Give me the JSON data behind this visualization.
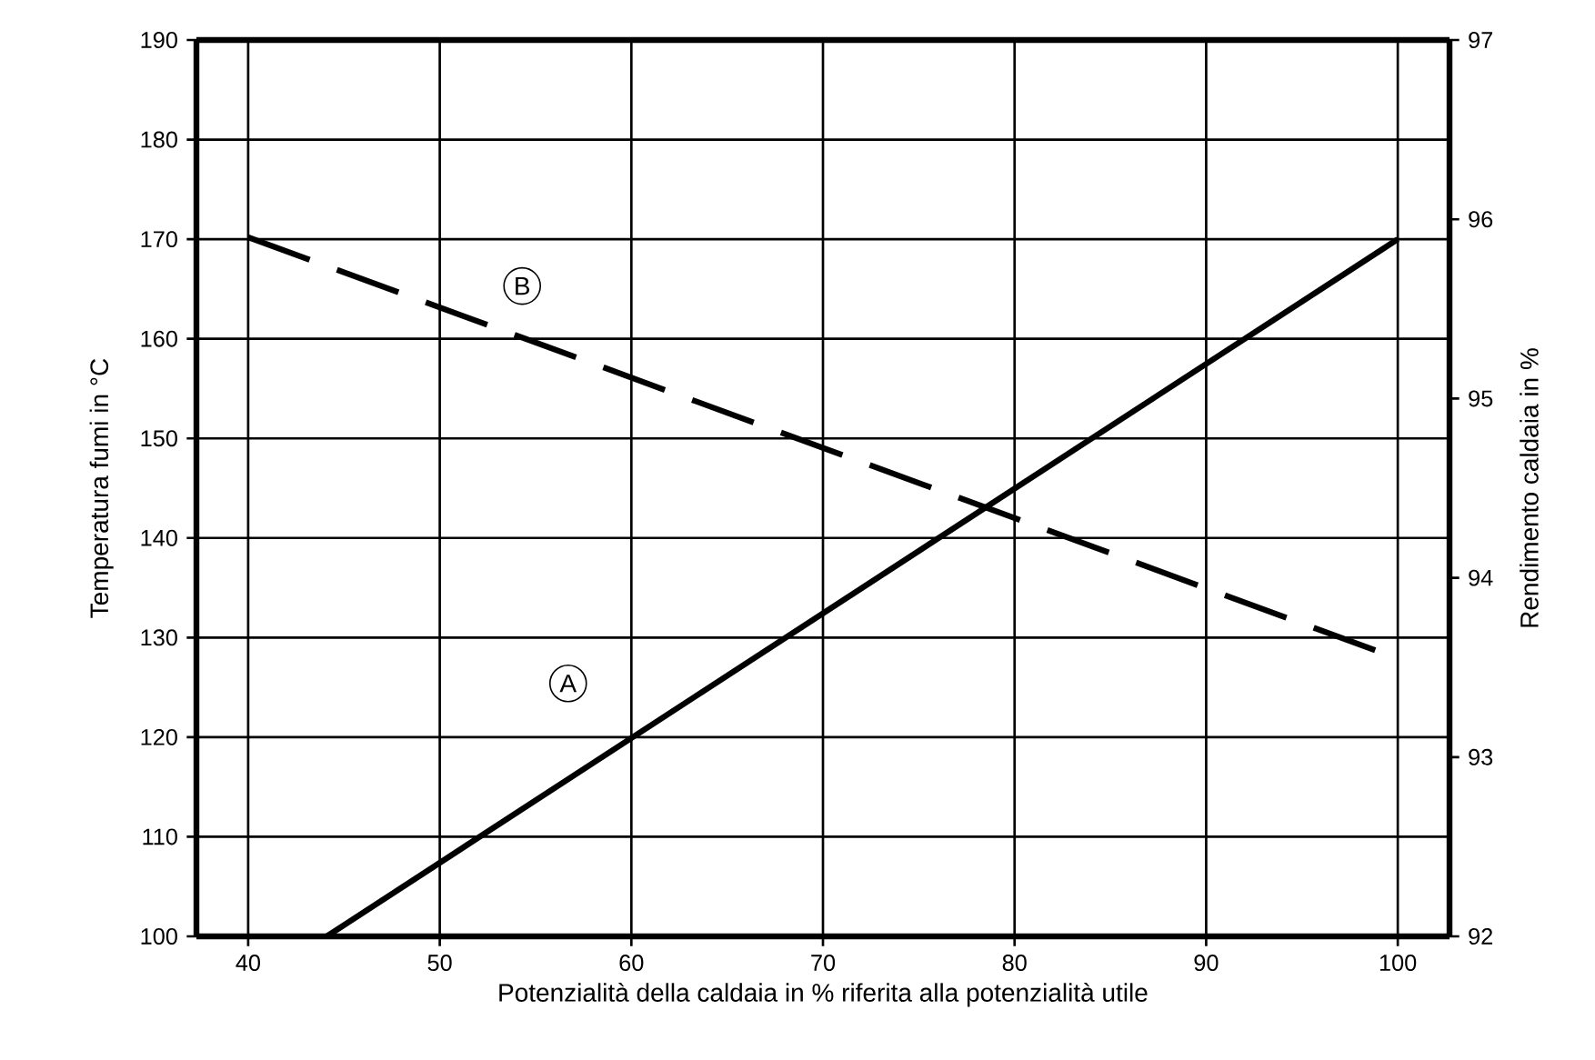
{
  "chart_data": {
    "type": "line",
    "xlabel": "Potenzialità della caldaia in % riferita alla potenzialità utile",
    "ylabel": "Temperatura fumi in °C",
    "y2label": "Rendimento caldaia in %",
    "xlim": [
      37.3,
      102.7
    ],
    "xticks": [
      40,
      50,
      60,
      70,
      80,
      90,
      100
    ],
    "ylim": [
      100,
      190
    ],
    "yticks": [
      100,
      110,
      120,
      130,
      140,
      150,
      160,
      170,
      180,
      190
    ],
    "y2lim": [
      92,
      97
    ],
    "y2ticks": [
      92,
      93,
      94,
      95,
      96,
      97
    ],
    "grid": true,
    "series": [
      {
        "x": [
          44.1,
          100
        ],
        "values": [
          100,
          170
        ],
        "color": "#000000",
        "line_style": "solid"
      },
      {
        "x": [
          40,
          100
        ],
        "values": [
          95.9,
          93.55
        ],
        "color": "#000000",
        "line_style": "dashed",
        "axis": "y2"
      }
    ],
    "annotations": [
      {
        "text": "A",
        "x": 56.7,
        "y": 125.4
      },
      {
        "text": "B",
        "x": 54.3,
        "y": 165.3
      }
    ]
  }
}
